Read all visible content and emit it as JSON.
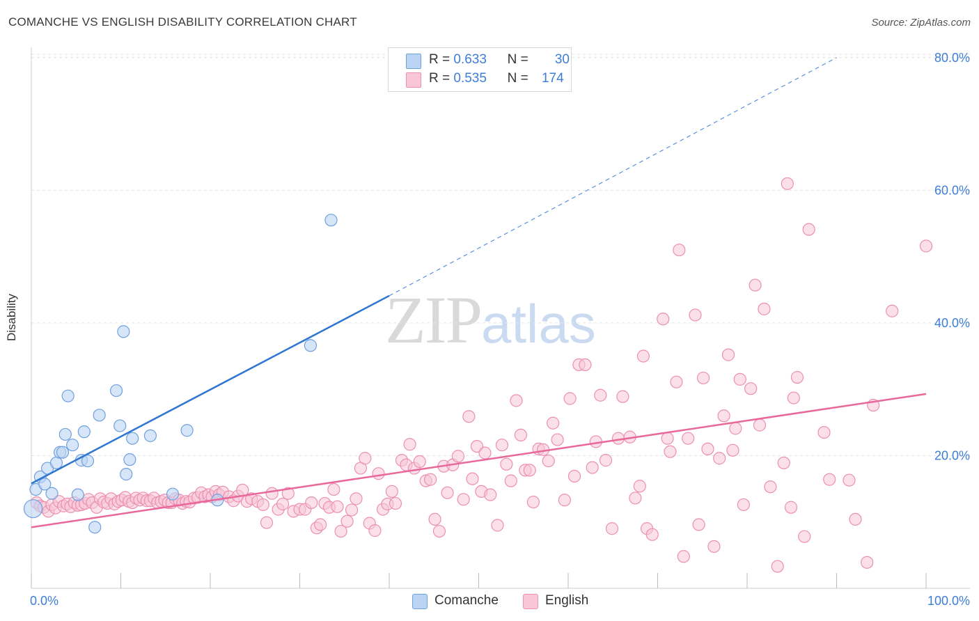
{
  "header": {
    "title": "COMANCHE VS ENGLISH DISABILITY CORRELATION CHART",
    "source": "Source: ZipAtlas.com"
  },
  "watermark": {
    "zip": "ZIP",
    "atlas": "atlas"
  },
  "legend": {
    "r_label": "R =",
    "n_label": "N =",
    "items": [
      {
        "name": "Comanche",
        "r": "0.633",
        "n": "30",
        "color": "#a9c8f0",
        "border": "#6ea0e0"
      },
      {
        "name": "English",
        "r": "0.535",
        "n": "174",
        "color": "#f7c0d3",
        "border": "#ee8fb0"
      }
    ]
  },
  "colors": {
    "comanche_point_fill": "#bcd4f3",
    "comanche_point_stroke": "#6fa0de",
    "comanche_line": "#2f76d2",
    "english_point_fill": "#f8c6d7",
    "english_point_stroke": "#ec8fb1",
    "english_line": "#e8689a",
    "axis_label": "#3d7dd8",
    "grid": "#e3e3e3"
  },
  "chart_data": {
    "type": "scatter",
    "title": "COMANCHE VS ENGLISH DISABILITY CORRELATION CHART",
    "xlabel": "",
    "ylabel": "Disability",
    "xlim": [
      0,
      100
    ],
    "ylim": [
      0,
      82
    ],
    "x_tick_labels": [
      {
        "value": 0,
        "label": "0.0%"
      },
      {
        "value": 100,
        "label": "100.0%"
      }
    ],
    "y_ticks": [
      {
        "value": 20,
        "label": "20.0%"
      },
      {
        "value": 40,
        "label": "40.0%"
      },
      {
        "value": 60,
        "label": "60.0%"
      },
      {
        "value": 80,
        "label": "80.0%"
      }
    ],
    "grid": true,
    "legend_position": "top-center",
    "series": [
      {
        "name": "Comanche",
        "r": 0.633,
        "n": 30,
        "trend": {
          "x0": 0,
          "y0": 15.8,
          "x1": 40,
          "y1": 44.1,
          "dashed_to_x": 90,
          "dashed_to_y": 80
        },
        "points": [
          [
            0.2,
            12.0
          ],
          [
            0.5,
            14.9
          ],
          [
            1.0,
            16.8
          ],
          [
            1.5,
            15.7
          ],
          [
            1.8,
            18.1
          ],
          [
            2.3,
            14.3
          ],
          [
            2.8,
            18.9
          ],
          [
            3.2,
            20.5
          ],
          [
            3.5,
            20.5
          ],
          [
            3.8,
            23.2
          ],
          [
            4.1,
            29.0
          ],
          [
            4.6,
            21.6
          ],
          [
            5.2,
            14.1
          ],
          [
            5.6,
            19.3
          ],
          [
            5.9,
            23.6
          ],
          [
            6.3,
            19.2
          ],
          [
            7.1,
            9.2
          ],
          [
            7.6,
            26.1
          ],
          [
            9.5,
            29.8
          ],
          [
            9.9,
            24.5
          ],
          [
            10.3,
            38.7
          ],
          [
            10.6,
            17.2
          ],
          [
            11.0,
            19.4
          ],
          [
            11.3,
            22.6
          ],
          [
            13.3,
            23.0
          ],
          [
            15.8,
            14.2
          ],
          [
            17.4,
            23.8
          ],
          [
            20.8,
            13.3
          ],
          [
            31.2,
            36.6
          ],
          [
            33.5,
            55.5
          ]
        ]
      },
      {
        "name": "English",
        "r": 0.535,
        "n": 174,
        "trend": {
          "x0": 0,
          "y0": 9.2,
          "x1": 100,
          "y1": 29.3
        },
        "points": [
          [
            0.6,
            12.9
          ],
          [
            1.0,
            12.4
          ],
          [
            1.4,
            12.2
          ],
          [
            1.9,
            11.6
          ],
          [
            2.3,
            12.6
          ],
          [
            2.7,
            12.1
          ],
          [
            3.1,
            13.1
          ],
          [
            3.6,
            12.4
          ],
          [
            4.0,
            12.7
          ],
          [
            4.4,
            12.3
          ],
          [
            4.8,
            12.9
          ],
          [
            5.2,
            12.5
          ],
          [
            5.6,
            12.6
          ],
          [
            6.0,
            12.8
          ],
          [
            6.4,
            13.4
          ],
          [
            6.8,
            12.9
          ],
          [
            7.3,
            12.2
          ],
          [
            7.7,
            13.5
          ],
          [
            8.1,
            13.0
          ],
          [
            8.5,
            12.8
          ],
          [
            8.9,
            13.5
          ],
          [
            9.3,
            12.7
          ],
          [
            9.7,
            13.1
          ],
          [
            10.1,
            13.3
          ],
          [
            10.5,
            13.7
          ],
          [
            10.9,
            13.1
          ],
          [
            11.3,
            12.9
          ],
          [
            11.7,
            13.6
          ],
          [
            12.1,
            13.3
          ],
          [
            12.5,
            13.6
          ],
          [
            12.9,
            13.2
          ],
          [
            13.3,
            13.2
          ],
          [
            13.7,
            13.6
          ],
          [
            14.1,
            12.9
          ],
          [
            14.5,
            13.1
          ],
          [
            14.9,
            13.3
          ],
          [
            15.3,
            12.9
          ],
          [
            15.7,
            12.9
          ],
          [
            16.1,
            13.5
          ],
          [
            16.5,
            13.3
          ],
          [
            16.9,
            12.8
          ],
          [
            17.3,
            13.1
          ],
          [
            17.7,
            13.0
          ],
          [
            18.2,
            13.6
          ],
          [
            18.6,
            13.7
          ],
          [
            19.0,
            14.4
          ],
          [
            19.4,
            13.8
          ],
          [
            19.8,
            14.1
          ],
          [
            20.2,
            13.8
          ],
          [
            20.6,
            14.6
          ],
          [
            21.0,
            14.1
          ],
          [
            21.4,
            14.5
          ],
          [
            22.1,
            13.8
          ],
          [
            22.6,
            13.2
          ],
          [
            23.1,
            13.9
          ],
          [
            23.6,
            14.8
          ],
          [
            24.1,
            13.1
          ],
          [
            24.6,
            13.5
          ],
          [
            25.3,
            13.1
          ],
          [
            25.9,
            12.6
          ],
          [
            26.3,
            9.9
          ],
          [
            26.9,
            14.3
          ],
          [
            27.6,
            11.9
          ],
          [
            28.1,
            12.7
          ],
          [
            28.7,
            14.3
          ],
          [
            29.3,
            11.6
          ],
          [
            30.0,
            11.9
          ],
          [
            30.6,
            11.9
          ],
          [
            31.3,
            12.9
          ],
          [
            31.9,
            9.1
          ],
          [
            32.3,
            9.6
          ],
          [
            32.8,
            12.8
          ],
          [
            33.3,
            12.2
          ],
          [
            33.8,
            14.9
          ],
          [
            34.2,
            12.3
          ],
          [
            34.6,
            8.6
          ],
          [
            35.3,
            10.1
          ],
          [
            35.8,
            11.8
          ],
          [
            36.3,
            13.5
          ],
          [
            36.8,
            18.1
          ],
          [
            37.3,
            19.6
          ],
          [
            37.8,
            9.8
          ],
          [
            38.4,
            8.7
          ],
          [
            38.8,
            17.3
          ],
          [
            39.3,
            11.9
          ],
          [
            39.8,
            12.7
          ],
          [
            40.3,
            14.6
          ],
          [
            40.7,
            12.8
          ],
          [
            41.4,
            19.3
          ],
          [
            41.9,
            18.6
          ],
          [
            42.3,
            21.7
          ],
          [
            42.8,
            18.1
          ],
          [
            43.4,
            19.1
          ],
          [
            44.1,
            16.2
          ],
          [
            44.6,
            16.4
          ],
          [
            45.1,
            10.4
          ],
          [
            45.6,
            8.6
          ],
          [
            46.1,
            18.4
          ],
          [
            46.5,
            14.4
          ],
          [
            47.1,
            18.6
          ],
          [
            47.7,
            19.9
          ],
          [
            48.3,
            13.4
          ],
          [
            48.9,
            25.9
          ],
          [
            49.3,
            16.5
          ],
          [
            49.8,
            21.4
          ],
          [
            50.3,
            14.6
          ],
          [
            50.7,
            20.4
          ],
          [
            51.3,
            14.1
          ],
          [
            52.1,
            9.5
          ],
          [
            52.6,
            21.6
          ],
          [
            53.1,
            18.7
          ],
          [
            53.6,
            16.2
          ],
          [
            54.2,
            28.3
          ],
          [
            54.7,
            23.1
          ],
          [
            55.2,
            17.8
          ],
          [
            55.7,
            17.8
          ],
          [
            56.1,
            13.0
          ],
          [
            56.7,
            21.0
          ],
          [
            57.2,
            20.9
          ],
          [
            57.8,
            19.2
          ],
          [
            58.3,
            24.9
          ],
          [
            58.8,
            22.4
          ],
          [
            59.6,
            13.3
          ],
          [
            60.2,
            28.6
          ],
          [
            60.7,
            16.9
          ],
          [
            61.2,
            33.7
          ],
          [
            61.9,
            33.7
          ],
          [
            62.7,
            18.2
          ],
          [
            63.1,
            22.1
          ],
          [
            63.6,
            29.1
          ],
          [
            64.2,
            19.3
          ],
          [
            64.9,
            9.0
          ],
          [
            65.6,
            22.6
          ],
          [
            66.1,
            28.9
          ],
          [
            66.9,
            22.8
          ],
          [
            67.5,
            13.6
          ],
          [
            68.0,
            15.4
          ],
          [
            68.4,
            35.0
          ],
          [
            68.8,
            9.0
          ],
          [
            69.4,
            8.1
          ],
          [
            70.6,
            40.6
          ],
          [
            71.1,
            22.6
          ],
          [
            71.4,
            20.6
          ],
          [
            72.1,
            31.1
          ],
          [
            72.4,
            51.0
          ],
          [
            72.9,
            4.8
          ],
          [
            73.4,
            22.6
          ],
          [
            74.2,
            41.2
          ],
          [
            74.6,
            9.6
          ],
          [
            75.1,
            31.7
          ],
          [
            75.6,
            21.0
          ],
          [
            76.3,
            6.3
          ],
          [
            76.9,
            19.6
          ],
          [
            77.4,
            26.0
          ],
          [
            77.9,
            35.2
          ],
          [
            78.4,
            20.8
          ],
          [
            78.7,
            24.1
          ],
          [
            79.2,
            31.5
          ],
          [
            79.6,
            12.6
          ],
          [
            80.4,
            30.1
          ],
          [
            80.9,
            45.7
          ],
          [
            81.4,
            24.6
          ],
          [
            81.9,
            42.1
          ],
          [
            82.6,
            15.3
          ],
          [
            83.4,
            3.3
          ],
          [
            84.1,
            18.9
          ],
          [
            84.5,
            61.0
          ],
          [
            84.9,
            12.2
          ],
          [
            85.2,
            28.7
          ],
          [
            85.6,
            31.8
          ],
          [
            86.4,
            7.8
          ],
          [
            86.9,
            54.1
          ],
          [
            88.6,
            23.5
          ],
          [
            89.2,
            16.4
          ],
          [
            91.4,
            16.3
          ],
          [
            92.1,
            10.4
          ],
          [
            93.4,
            3.9
          ],
          [
            94.1,
            27.6
          ],
          [
            96.2,
            41.8
          ],
          [
            100.0,
            51.6
          ]
        ]
      }
    ]
  }
}
